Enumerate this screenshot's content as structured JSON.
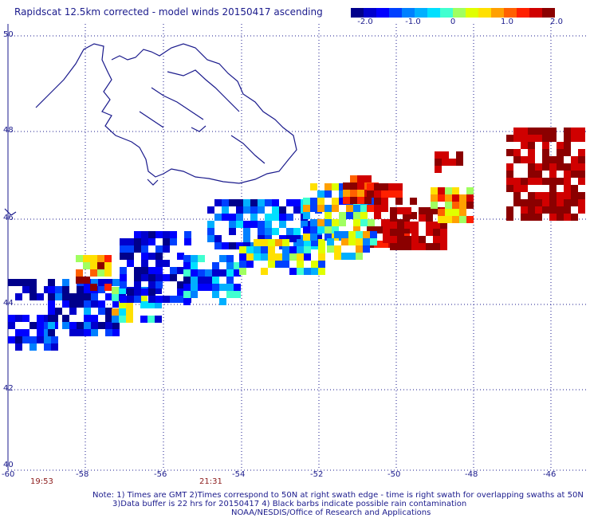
{
  "title": "Rapidscat 12.5km corrected - model winds 20150417 ascending",
  "colorbar": {
    "ticks": [
      "-2.0",
      "-1.0",
      "0",
      "1.0",
      "2.0"
    ],
    "colors": [
      "#00008b",
      "#0000cd",
      "#0000ff",
      "#0040ff",
      "#0080ff",
      "#00b0ff",
      "#00e0ff",
      "#40ffd0",
      "#a0ff60",
      "#e0ff00",
      "#ffe000",
      "#ffa000",
      "#ff6000",
      "#ff2000",
      "#d00000",
      "#8b0000"
    ]
  },
  "axes": {
    "x_ticks": [
      "-60",
      "-58",
      "-56",
      "-54",
      "-52",
      "-50",
      "-48",
      "-46"
    ],
    "y_ticks": [
      "50",
      "48",
      "46",
      "44",
      "42",
      "40"
    ]
  },
  "time_labels": [
    "19:53",
    "21:31"
  ],
  "notes": [
    "Note: 1) Times are GMT 2)Times correspond to 50N at right swath edge - time is right swath for overlapping swaths at 50N",
    "3)Data buffer is 22 hrs for 20150417 4) Black barbs indicate possible rain contamination",
    "NOAA/NESDIS/Office of Research and Applications"
  ]
}
